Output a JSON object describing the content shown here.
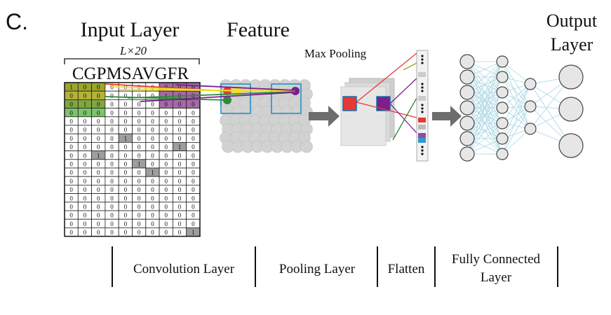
{
  "panel_label": "C.",
  "headings": {
    "input_layer": "Input Layer",
    "feature": "Feature",
    "max_pooling": "Max Pooling",
    "output_layer_line1": "Output",
    "output_layer_line2": "Layer"
  },
  "input": {
    "dimension_label": "L×20",
    "sequence": "CGPMSAVGFR",
    "matrix": [
      [
        "1",
        "0",
        "0",
        "0",
        "0",
        "0",
        "0",
        "0",
        "0",
        "0"
      ],
      [
        "0",
        "0",
        "0",
        "0",
        "0",
        "0",
        "0",
        "1",
        "0",
        "0"
      ],
      [
        "0",
        "1",
        "0",
        "0",
        "0",
        "0",
        "0",
        "0",
        "0",
        "0"
      ],
      [
        "0",
        "0",
        "0",
        "0",
        "0",
        "0",
        "0",
        "0",
        "0",
        "0"
      ],
      [
        "0",
        "0",
        "0",
        "0",
        "0",
        "0",
        "0",
        "0",
        "0",
        "0"
      ],
      [
        "0",
        "0",
        "0",
        "0",
        "0",
        "0",
        "0",
        "0",
        "0",
        "0"
      ],
      [
        "0",
        "0",
        "0",
        "0",
        "1",
        "0",
        "0",
        "0",
        "0",
        "0"
      ],
      [
        "0",
        "0",
        "0",
        "0",
        "0",
        "0",
        "0",
        "0",
        "1",
        "0"
      ],
      [
        "0",
        "0",
        "1",
        "0",
        "0",
        "0",
        "0",
        "0",
        "0",
        "0"
      ],
      [
        "0",
        "0",
        "0",
        "0",
        "0",
        "1",
        "0",
        "0",
        "0",
        "0"
      ],
      [
        "0",
        "0",
        "0",
        "0",
        "0",
        "0",
        "1",
        "0",
        "0",
        "0"
      ],
      [
        "0",
        "0",
        "0",
        "0",
        "0",
        "0",
        "0",
        "0",
        "0",
        "0"
      ],
      [
        "0",
        "0",
        "0",
        "0",
        "0",
        "0",
        "0",
        "0",
        "0",
        "0"
      ],
      [
        "0",
        "0",
        "0",
        "0",
        "0",
        "0",
        "0",
        "0",
        "0",
        "0"
      ],
      [
        "0",
        "0",
        "0",
        "0",
        "0",
        "0",
        "0",
        "0",
        "0",
        "0"
      ],
      [
        "0",
        "0",
        "0",
        "0",
        "0",
        "0",
        "0",
        "0",
        "0",
        "0"
      ],
      [
        "0",
        "0",
        "0",
        "0",
        "0",
        "0",
        "0",
        "0",
        "0",
        "0"
      ],
      [
        "0",
        "0",
        "0",
        "0",
        "0",
        "0",
        "0",
        "0",
        "0",
        "1"
      ]
    ]
  },
  "stages": {
    "convolution": "Convolution Layer",
    "pooling": "Pooling Layer",
    "flatten": "Flatten",
    "fully_connected_line1": "Fully Connected",
    "fully_connected_line2": "Layer"
  },
  "colors": {
    "red": "#e53935",
    "yellow": "#f4e01c",
    "green": "#2e8b3a",
    "purple": "#7b1f8c",
    "olive": "#9aa52a",
    "blue_box": "#3399cc",
    "gray_cell": "#9e9e9e",
    "arrow": "#6d6d6d",
    "neuron_fill": "#e6e6e6",
    "connection": "#a8d6e3"
  }
}
